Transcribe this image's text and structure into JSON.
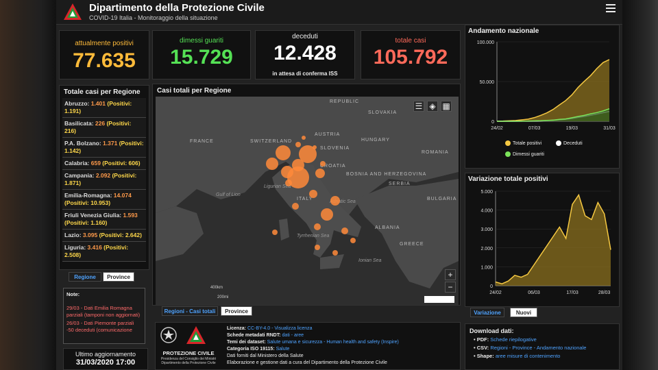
{
  "header": {
    "title": "Dipartimento della Protezione Civile",
    "subtitle": "COVID-19 Italia - Monitoraggio della situazione"
  },
  "kpis": {
    "positive": {
      "label": "attualmente positivi",
      "value": "77.635",
      "color": "#ffbb3a"
    },
    "recovered": {
      "label": "dimessi guariti",
      "value": "15.729",
      "color": "#55e155"
    },
    "deaths": {
      "label": "deceduti",
      "value": "12.428",
      "note": "in attesa di conferma ISS",
      "color": "#ffffff"
    },
    "total": {
      "label": "totale casi",
      "value": "105.792",
      "color": "#ff6a5a"
    }
  },
  "regions": {
    "title": "Totale casi per Regione",
    "items": [
      {
        "name": "Abruzzo:",
        "total": "1.401",
        "positivi": "(Positivi: 1.191)"
      },
      {
        "name": "Basilicata:",
        "total": "226",
        "positivi": "(Positivi: 216)"
      },
      {
        "name": "P.A. Bolzano:",
        "total": "1.371",
        "positivi": "(Positivi: 1.142)"
      },
      {
        "name": "Calabria:",
        "total": "659",
        "positivi": "(Positivi: 606)"
      },
      {
        "name": "Campania:",
        "total": "2.092",
        "positivi": "(Positivi: 1.871)"
      },
      {
        "name": "Emilia-Romagna:",
        "total": "14.074",
        "positivi": "(Positivi: 10.953)"
      },
      {
        "name": "Friuli Venezia Giulia:",
        "total": "1.593",
        "positivi": "(Positivi: 1.160)"
      },
      {
        "name": "Lazio:",
        "total": "3.095",
        "positivi": "(Positivi: 2.642)"
      },
      {
        "name": "Liguria:",
        "total": "3.416",
        "positivi": "(Positivi: 2.508)"
      }
    ],
    "tabs": [
      "Regione",
      "Province"
    ]
  },
  "notes": {
    "header": "Note:",
    "lines": [
      "29/03 - Dati Emilia Romagna parziali (tamponi non aggiornati)",
      "26/03 - Dati Piemonte parziali -50 deceduti (comunicazione"
    ]
  },
  "update": {
    "label": "Ultimo aggiornamento",
    "value": "31/03/2020 17:00"
  },
  "map": {
    "title": "Casi totali per Regione",
    "tabs": [
      "Regioni - Casi totali",
      "Province"
    ],
    "countries": [
      "FRANCE",
      "SWITZERLAND",
      "AUSTRIA",
      "SLOVENIA",
      "CROATIA",
      "HUNGARY",
      "ROMANIA",
      "SERBIA",
      "BOSNIA AND HERZEGOVINA",
      "BULGARIA",
      "ALBANIA",
      "GREECE",
      "ITALY",
      "SLOVAKIA",
      "REPUBLIC"
    ],
    "seas": [
      "Gulf of Lion",
      "Ligurian Sea",
      "Adriatic Sea",
      "Tyrrhenian Sea",
      "Ionian Sea"
    ],
    "scale": [
      "400km",
      "200mi"
    ],
    "zoom_in": "+",
    "zoom_out": "−"
  },
  "national_chart": {
    "title": "Andamento nazionale",
    "yticks": [
      "100.000",
      "50.000",
      "0"
    ],
    "xticks": [
      "24/02",
      "07/03",
      "19/03",
      "31/03"
    ],
    "legend": [
      {
        "name": "Totale positivi",
        "color": "#f5c842"
      },
      {
        "name": "Deceduti",
        "color": "#ffffff"
      },
      {
        "name": "Dimessi guariti",
        "color": "#7be35a"
      }
    ]
  },
  "variation_chart": {
    "title": "Variazione totale positivi",
    "yticks": [
      "5.000",
      "4.000",
      "3.000",
      "2.000",
      "1.000",
      "0"
    ],
    "xticks": [
      "24/02",
      "06/03",
      "17/03",
      "28/03"
    ],
    "tabs": [
      "Variazione",
      "Nuovi"
    ]
  },
  "chart_data": [
    {
      "type": "area",
      "title": "Andamento nazionale",
      "x": [
        "24/02",
        "26/02",
        "28/02",
        "01/03",
        "03/03",
        "05/03",
        "07/03",
        "09/03",
        "11/03",
        "13/03",
        "15/03",
        "17/03",
        "19/03",
        "21/03",
        "23/03",
        "25/03",
        "27/03",
        "29/03",
        "31/03"
      ],
      "ylim": [
        0,
        100000
      ],
      "series": [
        {
          "name": "Totale positivi",
          "values": [
            220,
            300,
            600,
            1000,
            1800,
            2700,
            4600,
            7400,
            10600,
            14900,
            20600,
            26000,
            33200,
            42700,
            50400,
            57500,
            66400,
            73900,
            77600
          ]
        },
        {
          "name": "Deceduti",
          "values": [
            7,
            12,
            21,
            34,
            79,
            148,
            233,
            463,
            827,
            1266,
            1809,
            2503,
            3405,
            4825,
            6077,
            7503,
            9134,
            10779,
            12428
          ]
        },
        {
          "name": "Dimessi guariti",
          "values": [
            1,
            3,
            46,
            83,
            160,
            276,
            589,
            724,
            1045,
            1439,
            2335,
            2941,
            4440,
            6072,
            7432,
            9362,
            10950,
            13030,
            15729
          ]
        }
      ]
    },
    {
      "type": "area",
      "title": "Variazione totale positivi",
      "x": [
        "24/02",
        "26/02",
        "28/02",
        "01/03",
        "03/03",
        "05/03",
        "07/03",
        "09/03",
        "11/03",
        "13/03",
        "15/03",
        "17/03",
        "19/03",
        "21/03",
        "23/03",
        "25/03",
        "27/03",
        "29/03",
        "31/03"
      ],
      "ylim": [
        0,
        5000
      ],
      "values": [
        200,
        100,
        250,
        550,
        450,
        600,
        1100,
        1600,
        2100,
        2600,
        3100,
        2500,
        4300,
        4800,
        3700,
        3500,
        4400,
        3800,
        1900
      ]
    }
  ],
  "info": {
    "org": "PROTEZIONE CIVILE",
    "org_sub": "Presidenza del Consiglio dei Ministri Dipartimento della Protezione Civile",
    "lines": [
      {
        "label": "Licenza:",
        "text": "CC-BY-4.0 - Visualizza licenza"
      },
      {
        "label": "Schede metadati RNDT:",
        "text": "dati - aree"
      },
      {
        "label": "Temi dei dataset:",
        "text": "Salute umana e sicurezza - Human health and safety (Inspire)"
      },
      {
        "label": "Categoria ISO 19115:",
        "text": "Salute"
      },
      {
        "label": "",
        "text": "Dati forniti dal Ministero della Salute"
      },
      {
        "label": "",
        "text": "Elaborazione e gestione dati a cura del Dipartimento della Protezione Civile"
      }
    ]
  },
  "downloads": {
    "title": "Download dati:",
    "items": [
      {
        "label": "PDF:",
        "text": "Schede riepilogative"
      },
      {
        "label": "CSV:",
        "text": "Regioni - Province - Andamento nazionale"
      },
      {
        "label": "Shape:",
        "text": "aree misure di contenimento"
      }
    ]
  }
}
